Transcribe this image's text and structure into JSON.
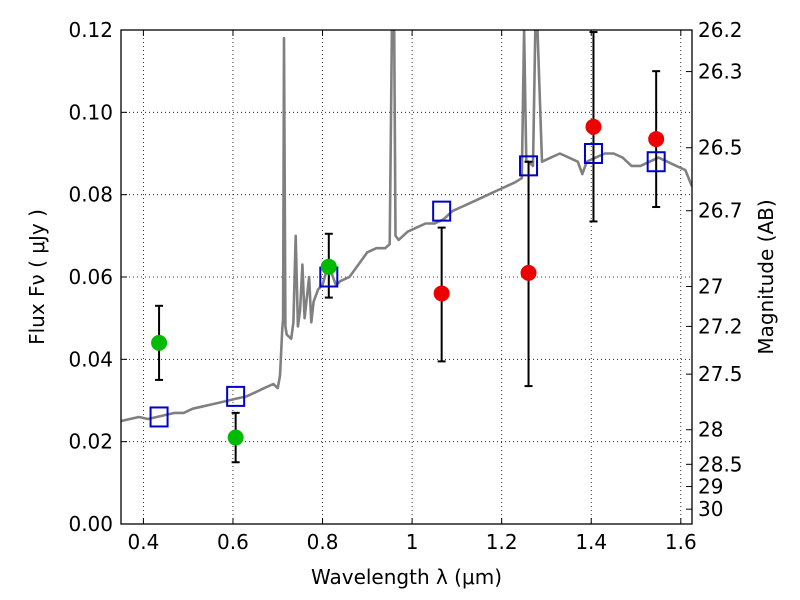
{
  "chart_data": {
    "type": "scatter",
    "xlabel": "Wavelength  λ (μm)",
    "ylabel": "Flux  Fν  ( μJy )",
    "y2label": "Magnitude (AB)",
    "xlim": [
      0.35,
      1.625
    ],
    "ylim": [
      0.0,
      0.12
    ],
    "grid": true,
    "x_ticks": [
      0.4,
      0.6,
      0.8,
      1.0,
      1.2,
      1.4,
      1.6
    ],
    "x_tick_labels": [
      "0.4",
      "0.6",
      "0.8",
      "1",
      "1.2",
      "1.4",
      "1.6"
    ],
    "y_ticks": [
      0.0,
      0.02,
      0.04,
      0.06,
      0.08,
      0.1,
      0.12
    ],
    "y_tick_labels": [
      "0.00",
      "0.02",
      "0.04",
      "0.06",
      "0.08",
      "0.10",
      "0.12"
    ],
    "y2_ticks": [
      {
        "label": "26.2",
        "flux": 0.12
      },
      {
        "label": "26.3",
        "flux": 0.1099
      },
      {
        "label": "26.5",
        "flux": 0.0914
      },
      {
        "label": "26.7",
        "flux": 0.0761
      },
      {
        "label": "27",
        "flux": 0.0577
      },
      {
        "label": "27.2",
        "flux": 0.048
      },
      {
        "label": "27.5",
        "flux": 0.0364
      },
      {
        "label": "28",
        "flux": 0.0229
      },
      {
        "label": "28.5",
        "flux": 0.0145
      },
      {
        "label": "29",
        "flux": 0.0091
      },
      {
        "label": "30",
        "flux": 0.0036
      }
    ],
    "series": [
      {
        "kind": "spectrum",
        "color": "#808080",
        "points": [
          [
            0.35,
            0.025
          ],
          [
            0.37,
            0.0255
          ],
          [
            0.39,
            0.026
          ],
          [
            0.41,
            0.0255
          ],
          [
            0.43,
            0.026
          ],
          [
            0.45,
            0.0265
          ],
          [
            0.47,
            0.027
          ],
          [
            0.49,
            0.027
          ],
          [
            0.51,
            0.028
          ],
          [
            0.53,
            0.0285
          ],
          [
            0.55,
            0.029
          ],
          [
            0.57,
            0.0295
          ],
          [
            0.59,
            0.03
          ],
          [
            0.61,
            0.0305
          ],
          [
            0.63,
            0.031
          ],
          [
            0.65,
            0.032
          ],
          [
            0.67,
            0.033
          ],
          [
            0.69,
            0.034
          ],
          [
            0.7,
            0.033
          ],
          [
            0.705,
            0.036
          ],
          [
            0.71,
            0.047
          ],
          [
            0.712,
            0.05
          ],
          [
            0.714,
            0.118
          ],
          [
            0.717,
            0.048
          ],
          [
            0.72,
            0.046
          ],
          [
            0.73,
            0.045
          ],
          [
            0.735,
            0.049
          ],
          [
            0.74,
            0.07
          ],
          [
            0.745,
            0.048
          ],
          [
            0.75,
            0.052
          ],
          [
            0.755,
            0.063
          ],
          [
            0.76,
            0.05
          ],
          [
            0.77,
            0.06
          ],
          [
            0.775,
            0.049
          ],
          [
            0.78,
            0.054
          ],
          [
            0.79,
            0.057
          ],
          [
            0.8,
            0.058
          ],
          [
            0.81,
            0.062
          ],
          [
            0.82,
            0.061
          ],
          [
            0.83,
            0.058
          ],
          [
            0.84,
            0.059
          ],
          [
            0.86,
            0.06
          ],
          [
            0.88,
            0.063
          ],
          [
            0.9,
            0.066
          ],
          [
            0.92,
            0.067
          ],
          [
            0.94,
            0.067
          ],
          [
            0.95,
            0.068
          ],
          [
            0.955,
            0.12
          ],
          [
            0.96,
            0.12
          ],
          [
            0.963,
            0.07
          ],
          [
            0.97,
            0.069
          ],
          [
            0.99,
            0.071
          ],
          [
            1.01,
            0.072
          ],
          [
            1.03,
            0.073
          ],
          [
            1.05,
            0.073
          ],
          [
            1.07,
            0.074
          ],
          [
            1.09,
            0.076
          ],
          [
            1.11,
            0.077
          ],
          [
            1.13,
            0.078
          ],
          [
            1.15,
            0.079
          ],
          [
            1.17,
            0.08
          ],
          [
            1.19,
            0.081
          ],
          [
            1.21,
            0.082
          ],
          [
            1.23,
            0.083
          ],
          [
            1.245,
            0.084
          ],
          [
            1.25,
            0.12
          ],
          [
            1.255,
            0.088
          ],
          [
            1.26,
            0.088
          ],
          [
            1.27,
            0.087
          ],
          [
            1.275,
            0.12
          ],
          [
            1.28,
            0.12
          ],
          [
            1.29,
            0.088
          ],
          [
            1.31,
            0.089
          ],
          [
            1.33,
            0.09
          ],
          [
            1.35,
            0.089
          ],
          [
            1.37,
            0.088
          ],
          [
            1.38,
            0.085
          ],
          [
            1.39,
            0.088
          ],
          [
            1.41,
            0.089
          ],
          [
            1.43,
            0.09
          ],
          [
            1.45,
            0.09
          ],
          [
            1.47,
            0.089
          ],
          [
            1.49,
            0.087
          ],
          [
            1.51,
            0.087
          ],
          [
            1.53,
            0.088
          ],
          [
            1.55,
            0.089
          ],
          [
            1.57,
            0.088
          ],
          [
            1.59,
            0.087
          ],
          [
            1.61,
            0.086
          ],
          [
            1.625,
            0.082
          ]
        ]
      },
      {
        "kind": "model-photometry",
        "marker": "square",
        "color": "#0000cc",
        "points": [
          [
            0.435,
            0.026
          ],
          [
            0.606,
            0.031
          ],
          [
            0.814,
            0.06
          ],
          [
            1.066,
            0.076
          ],
          [
            1.26,
            0.087
          ],
          [
            1.405,
            0.09
          ],
          [
            1.545,
            0.088
          ]
        ]
      },
      {
        "kind": "observed-green",
        "marker": "circle",
        "color": "#00bb00",
        "points": [
          {
            "x": 0.435,
            "y": 0.044,
            "lo": 0.035,
            "hi": 0.053
          },
          {
            "x": 0.606,
            "y": 0.021,
            "lo": 0.015,
            "hi": 0.027
          },
          {
            "x": 0.814,
            "y": 0.0625,
            "lo": 0.055,
            "hi": 0.0705
          }
        ]
      },
      {
        "kind": "observed-red",
        "marker": "circle",
        "color": "#ee0000",
        "points": [
          {
            "x": 1.066,
            "y": 0.056,
            "lo": 0.0395,
            "hi": 0.072
          },
          {
            "x": 1.26,
            "y": 0.061,
            "lo": 0.0335,
            "hi": 0.088
          },
          {
            "x": 1.405,
            "y": 0.0965,
            "lo": 0.0735,
            "hi": 0.1195
          },
          {
            "x": 1.545,
            "y": 0.0935,
            "lo": 0.077,
            "hi": 0.11
          }
        ]
      }
    ]
  }
}
